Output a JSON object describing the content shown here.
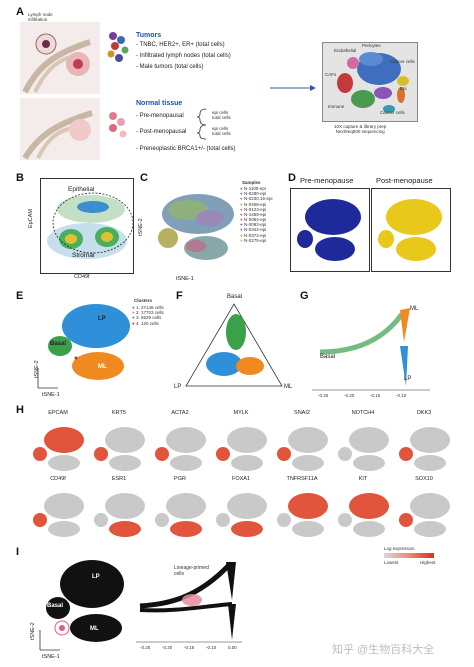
{
  "panels": {
    "A": {
      "letter": "A",
      "lymph_node_label": "Lymph node\ninfiltration",
      "tumors_title": "Tumors",
      "tumors_items": [
        "- TNBC, HER2+, ER+ (total cells)",
        "- Infiltrated lymph nodes (total cells)",
        "- Male tumors (total cells)"
      ],
      "normal_title": "Normal tissue",
      "normal_items": [
        "- Pre-menopausal",
        "- Post-menopausal",
        "- Preneoplastic BRCA1+/- (total cells)"
      ],
      "epi_total": "epi cells\ntotal cells",
      "cluster_labels": [
        "Endothelial",
        "Pericytes",
        "CAFs",
        "Cancer cells",
        "Epi",
        "Immune",
        "Cancer cells"
      ],
      "seq_caption": "10X capture & library prep\nNextSeq500 sequencing"
    },
    "B": {
      "letter": "B",
      "epithelial": "Epithelial",
      "stromal": "Stromal",
      "ylabel": "EpCAM",
      "xlabel": "CD49f"
    },
    "C": {
      "letter": "C",
      "ylabel": "tSNE-2",
      "xlabel": "tSNE-1",
      "legend_title": "Samples",
      "samples": [
        "N-1105-epi",
        "N-0280-epi",
        "N-0230.16-epi",
        "N-0408-epi",
        "N-0123-epi",
        "N-1469-epi",
        "N-0064-epi",
        "N-0093-epi",
        "N-0342-epi",
        "N-0372-epi",
        "N-0275-epi"
      ]
    },
    "D": {
      "letter": "D",
      "pre": "Pre-menopause",
      "post": "Post-menopause"
    },
    "E": {
      "letter": "E",
      "legend_title": "Clusters",
      "clusters": [
        "1. 27146 cells",
        "2. 17703 cells",
        "3. 6529 cells",
        "4. 120 cells"
      ],
      "lp": "LP",
      "basal": "Basal",
      "ml": "ML",
      "ylabel": "tSNE-2",
      "xlabel": "tSNE-1"
    },
    "F": {
      "letter": "F",
      "basal": "Basal",
      "lp": "LP",
      "ml": "ML"
    },
    "G": {
      "letter": "G",
      "ml": "ML",
      "basal": "Basal",
      "lp": "LP",
      "ticks": [
        "-0.25",
        "-0.20",
        "-0.15",
        "-0.10"
      ]
    },
    "H": {
      "letter": "H",
      "row1": [
        "EPCAM",
        "KRT5",
        "ACTA2",
        "MYLK",
        "SNAI2",
        "NOTCH4",
        "DKK3"
      ],
      "row2": [
        "CD49f",
        "ESR1",
        "PGR",
        "FOXA1",
        "TNFRSF11A",
        "KIT",
        "SOX10"
      ]
    },
    "I": {
      "letter": "I",
      "lp": "LP",
      "basal": "Basal",
      "ml": "ML",
      "ylabel": "tSNE-2",
      "xlabel": "tSNE-1",
      "lineage": "Lineage-primed\ncells",
      "log_expr": "Log expression",
      "low": "Lowest",
      "high": "Highest",
      "ticks": [
        "-0.25",
        "-0.20",
        "-0.15",
        "-0.10",
        "0.00"
      ]
    }
  },
  "watermark": "知乎 @生物百科大全"
}
